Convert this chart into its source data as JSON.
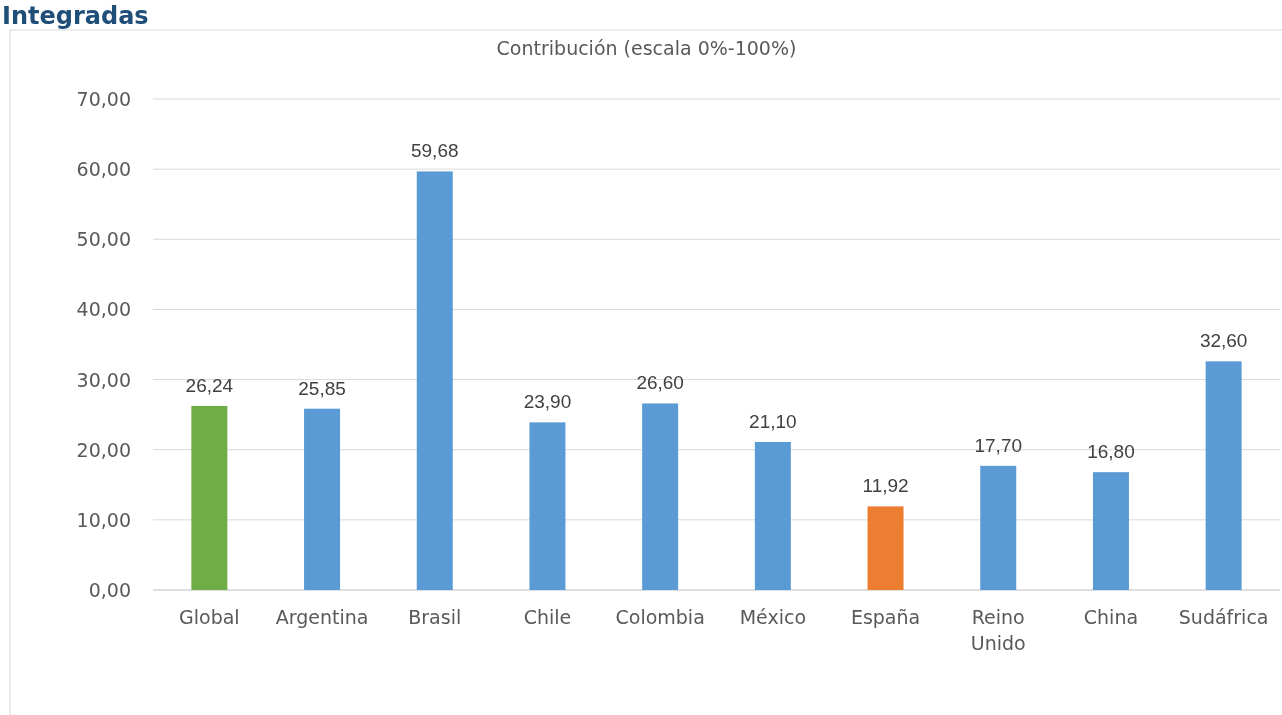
{
  "chart_data": {
    "type": "bar",
    "title": "Contribución (escala 0%-100%)",
    "annotations": [
      "Integradas"
    ],
    "categories": [
      "Global",
      "Argentina",
      "Brasil",
      "Chile",
      "Colombia",
      "México",
      "España",
      "Reino Unido",
      "China",
      "Sudáfrica"
    ],
    "values": [
      26.24,
      25.85,
      59.68,
      23.9,
      26.6,
      21.1,
      11.92,
      17.7,
      16.8,
      32.6
    ],
    "colors": [
      "#70ad47",
      "#5b9bd5",
      "#5b9bd5",
      "#5b9bd5",
      "#5b9bd5",
      "#5b9bd5",
      "#ed7d31",
      "#5b9bd5",
      "#5b9bd5",
      "#5b9bd5"
    ],
    "value_labels": [
      "26,24",
      "25,85",
      "59,68",
      "23,90",
      "26,60",
      "21,10",
      "11,92",
      "17,70",
      "16,80",
      "32,60"
    ],
    "ylim": [
      0,
      70
    ],
    "yticks": [
      {
        "value": 0,
        "label": "0,00"
      },
      {
        "value": 10,
        "label": "10,00"
      },
      {
        "value": 20,
        "label": "20,00"
      },
      {
        "value": 30,
        "label": "30,00"
      },
      {
        "value": 40,
        "label": "40,00"
      },
      {
        "value": 50,
        "label": "50,00"
      },
      {
        "value": 60,
        "label": "60,00"
      },
      {
        "value": 70,
        "label": "70,00"
      }
    ],
    "grid": "y"
  }
}
